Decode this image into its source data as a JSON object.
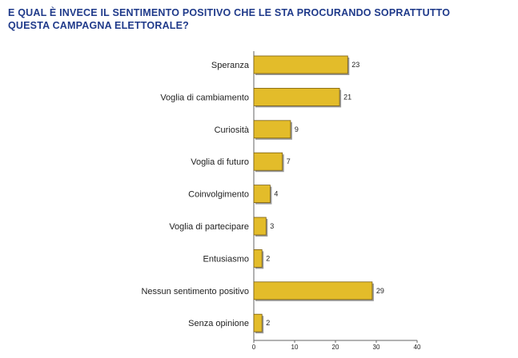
{
  "title_line1": "E QUAL È INVECE IL SENTIMENTO POSITIVO CHE LE STA PROCURANDO SOPRATTUTTO",
  "title_line2": "QUESTA CAMPAGNA ELETTORALE?",
  "colors": {
    "title": "#1f3a8a",
    "bar_fill": "#e3bc2a",
    "bar_stroke": "#7a5e10",
    "bar_shadow": "#9a9a9a",
    "axis": "#666666"
  },
  "chart_data": {
    "type": "bar",
    "orientation": "horizontal",
    "categories": [
      "Speranza",
      "Voglia di cambiamento",
      "Curiosità",
      "Voglia di futuro",
      "Coinvolgimento",
      "Voglia di partecipare",
      "Entusiasmo",
      "Nessun sentimento positivo",
      "Senza opinione"
    ],
    "values": [
      23,
      21,
      9,
      7,
      4,
      3,
      2,
      29,
      2
    ],
    "value_labels": [
      "23",
      "21",
      "9",
      "7",
      "4",
      "3",
      "2",
      "29",
      "2"
    ],
    "xlim": [
      0,
      40
    ],
    "xticks": [
      0,
      10,
      20,
      30,
      40
    ],
    "xtick_labels": [
      "0",
      "10",
      "20",
      "30",
      "40"
    ],
    "grid": false,
    "legend": "none"
  }
}
